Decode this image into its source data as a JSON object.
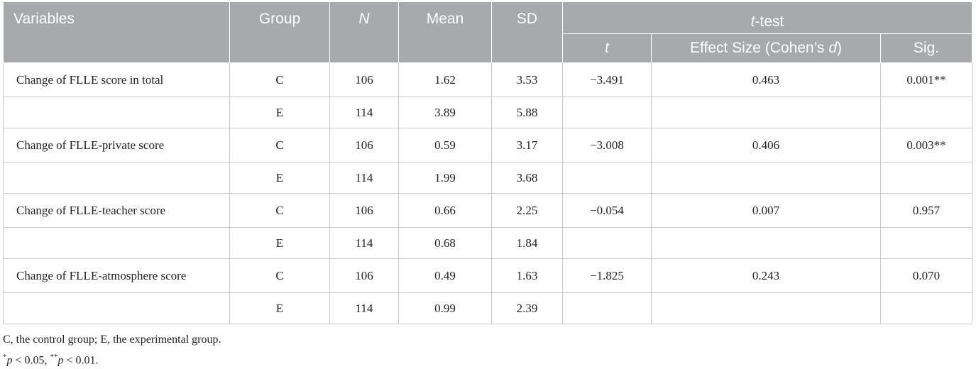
{
  "table": {
    "headers": {
      "variables": "Variables",
      "group": "Group",
      "n": "N",
      "mean": "Mean",
      "sd": "SD",
      "ttest_prefix": "t",
      "ttest_suffix": "-test",
      "t": "t",
      "effect_size_prefix": "Effect Size (Cohen’s ",
      "effect_size_d": "d",
      "effect_size_suffix": ")",
      "sig": "Sig."
    },
    "rows": [
      {
        "variable": "Change of FLLE score in total",
        "group": "C",
        "n": "106",
        "mean": "1.62",
        "sd": "3.53",
        "t": "−3.491",
        "effect_size": "0.463",
        "sig": "0.001**"
      },
      {
        "variable": "",
        "group": "E",
        "n": "114",
        "mean": "3.89",
        "sd": "5.88",
        "t": "",
        "effect_size": "",
        "sig": ""
      },
      {
        "variable": "Change of FLLE-private score",
        "group": "C",
        "n": "106",
        "mean": "0.59",
        "sd": "3.17",
        "t": "−3.008",
        "effect_size": "0.406",
        "sig": "0.003**"
      },
      {
        "variable": "",
        "group": "E",
        "n": "114",
        "mean": "1.99",
        "sd": "3.68",
        "t": "",
        "effect_size": "",
        "sig": ""
      },
      {
        "variable": "Change of FLLE-teacher score",
        "group": "C",
        "n": "106",
        "mean": "0.66",
        "sd": "2.25",
        "t": "−0.054",
        "effect_size": "0.007",
        "sig": "0.957"
      },
      {
        "variable": "",
        "group": "E",
        "n": "114",
        "mean": "0.68",
        "sd": "1.84",
        "t": "",
        "effect_size": "",
        "sig": ""
      },
      {
        "variable": "Change of FLLE-atmosphere score",
        "group": "C",
        "n": "106",
        "mean": "0.49",
        "sd": "1.63",
        "t": "−1.825",
        "effect_size": "0.243",
        "sig": "0.070"
      },
      {
        "variable": "",
        "group": "E",
        "n": "114",
        "mean": "0.99",
        "sd": "2.39",
        "t": "",
        "effect_size": "",
        "sig": ""
      }
    ]
  },
  "footnotes": {
    "line1": "C, the control group; E, the experimental group.",
    "star1": "*",
    "p1": "p",
    "lt1": " < 0.05, ",
    "star2": "**",
    "p2": "p",
    "lt2": " < 0.01."
  }
}
